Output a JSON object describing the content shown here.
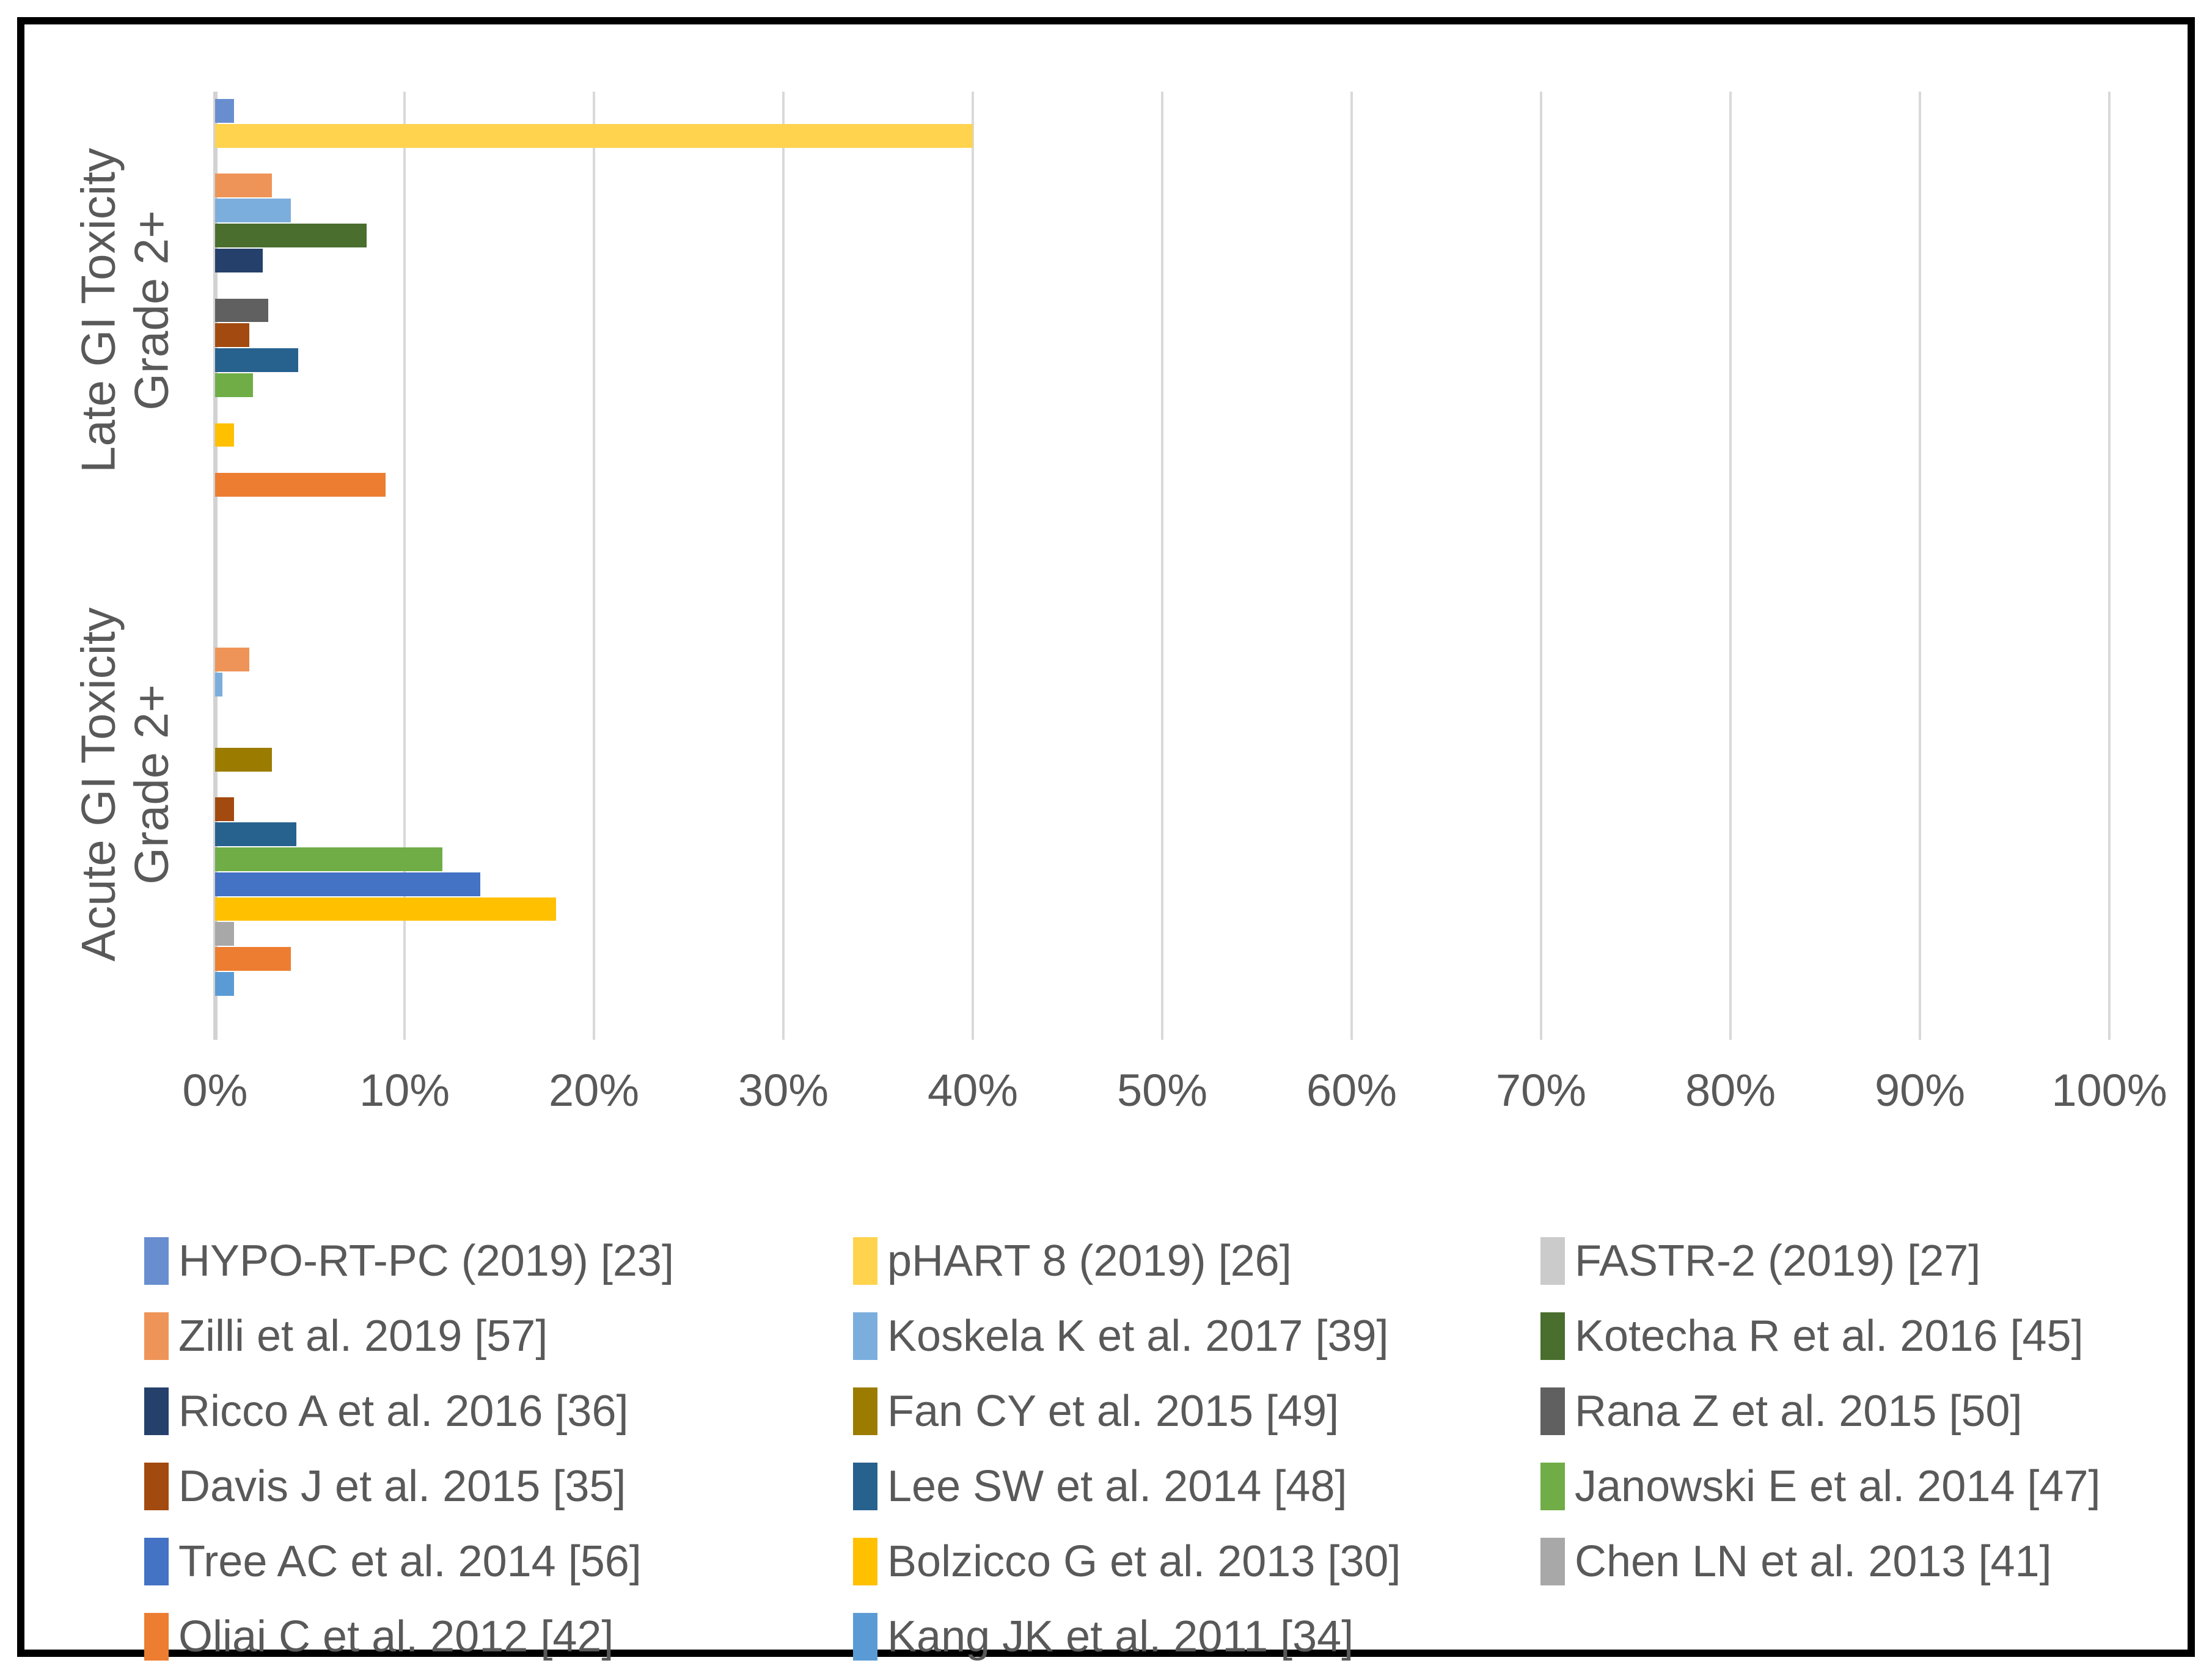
{
  "chart_data": {
    "type": "bar",
    "orientation": "horizontal",
    "title": "",
    "xlabel": "",
    "ylabel": "",
    "xlim": [
      0,
      100
    ],
    "x_ticks": [
      "0%",
      "10%",
      "20%",
      "30%",
      "40%",
      "50%",
      "60%",
      "70%",
      "80%",
      "90%",
      "100%"
    ],
    "grid": true,
    "legend_position": "bottom",
    "categories": [
      "Late GI Toxicity Grade 2+",
      "Acute GI Toxicity Grade 2+"
    ],
    "category_label_lines": [
      [
        "Late GI Toxicity",
        "Grade 2+"
      ],
      [
        "Acute GI Toxicity",
        "Grade 2+"
      ]
    ],
    "values_unit": "percent",
    "series": [
      {
        "name": "HYPO-RT-PC (2019) [23]",
        "color": "#698ED0",
        "values": {
          "late": 1.0,
          "acute": 0
        }
      },
      {
        "name": "pHART 8 (2019) [26]",
        "color": "#FFD34D",
        "values": {
          "late": 40.0,
          "acute": 0
        }
      },
      {
        "name": "FASTR-2 (2019) [27]",
        "color": "#CBCBCB",
        "values": {
          "late": 0,
          "acute": 0
        }
      },
      {
        "name": "Zilli et al. 2019 [57]",
        "color": "#EF9458",
        "values": {
          "late": 3.0,
          "acute": 1.8
        }
      },
      {
        "name": "Koskela K et al. 2017 [39]",
        "color": "#7CAEDD",
        "values": {
          "late": 4.0,
          "acute": 0.4
        }
      },
      {
        "name": "Kotecha R et al. 2016 [45]",
        "color": "#4A6E2E",
        "values": {
          "late": 8.0,
          "acute": 0
        }
      },
      {
        "name": "Ricco A et al. 2016 [36]",
        "color": "#25416B",
        "values": {
          "late": 2.5,
          "acute": 0
        }
      },
      {
        "name": "Fan CY et al. 2015 [49]",
        "color": "#9B7C00",
        "values": {
          "late": 0,
          "acute": 3.0
        }
      },
      {
        "name": "Rana Z et al. 2015 [50]",
        "color": "#606060",
        "values": {
          "late": 2.8,
          "acute": 0
        }
      },
      {
        "name": "Davis J et al. 2015 [35]",
        "color": "#A34A10",
        "values": {
          "late": 1.8,
          "acute": 1.0
        }
      },
      {
        "name": "Lee SW et al. 2014 [48]",
        "color": "#27618E",
        "values": {
          "late": 4.4,
          "acute": 4.3
        }
      },
      {
        "name": "Janowski E et al. 2014 [47]",
        "color": "#70AD47",
        "values": {
          "late": 2.0,
          "acute": 12.0
        }
      },
      {
        "name": "Tree AC et al. 2014 [56]",
        "color": "#4472C4",
        "values": {
          "late": 0,
          "acute": 14.0
        }
      },
      {
        "name": "Bolzicco G et al. 2013 [30]",
        "color": "#FFC000",
        "values": {
          "late": 1.0,
          "acute": 18.0
        }
      },
      {
        "name": "Chen LN et al. 2013 [41]",
        "color": "#A8A8A8",
        "values": {
          "late": 0,
          "acute": 1.0
        }
      },
      {
        "name": "Oliai C et al. 2012 [42]",
        "color": "#ED7D31",
        "values": {
          "late": 9.0,
          "acute": 4.0
        }
      },
      {
        "name": "Kang JK et al. 2011 [34]",
        "color": "#5B9BD5",
        "values": {
          "late": 0,
          "acute": 1.0
        }
      }
    ],
    "axis_color": "#D2D2D2",
    "gridline_color": "#D9D9D9",
    "text_color": "#595959",
    "border_color": "#000000"
  }
}
